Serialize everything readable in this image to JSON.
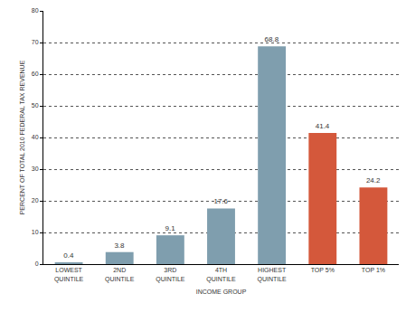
{
  "chart_data": {
    "type": "bar",
    "categories": [
      "LOWEST QUINTILE",
      "2ND QUINTILE",
      "3RD QUINTILE",
      "4TH QUINTILE",
      "HIGHEST QUINTILE",
      "TOP 5%",
      "TOP 1%"
    ],
    "values": [
      0.4,
      3.8,
      9.1,
      17.6,
      68.8,
      41.4,
      24.2
    ],
    "colors": [
      "#7f9eae",
      "#7f9eae",
      "#7f9eae",
      "#7f9eae",
      "#7f9eae",
      "#d4583b",
      "#d4583b"
    ],
    "xlabel": "INCOME GROUP",
    "ylabel": "PERCENT OF TOTAL 2010 FEDERAL TAX REVENUE",
    "ylim": [
      0,
      80
    ],
    "yticks": [
      0,
      10,
      20,
      30,
      40,
      50,
      60,
      70,
      80
    ],
    "grid": true,
    "data_labels": true
  }
}
